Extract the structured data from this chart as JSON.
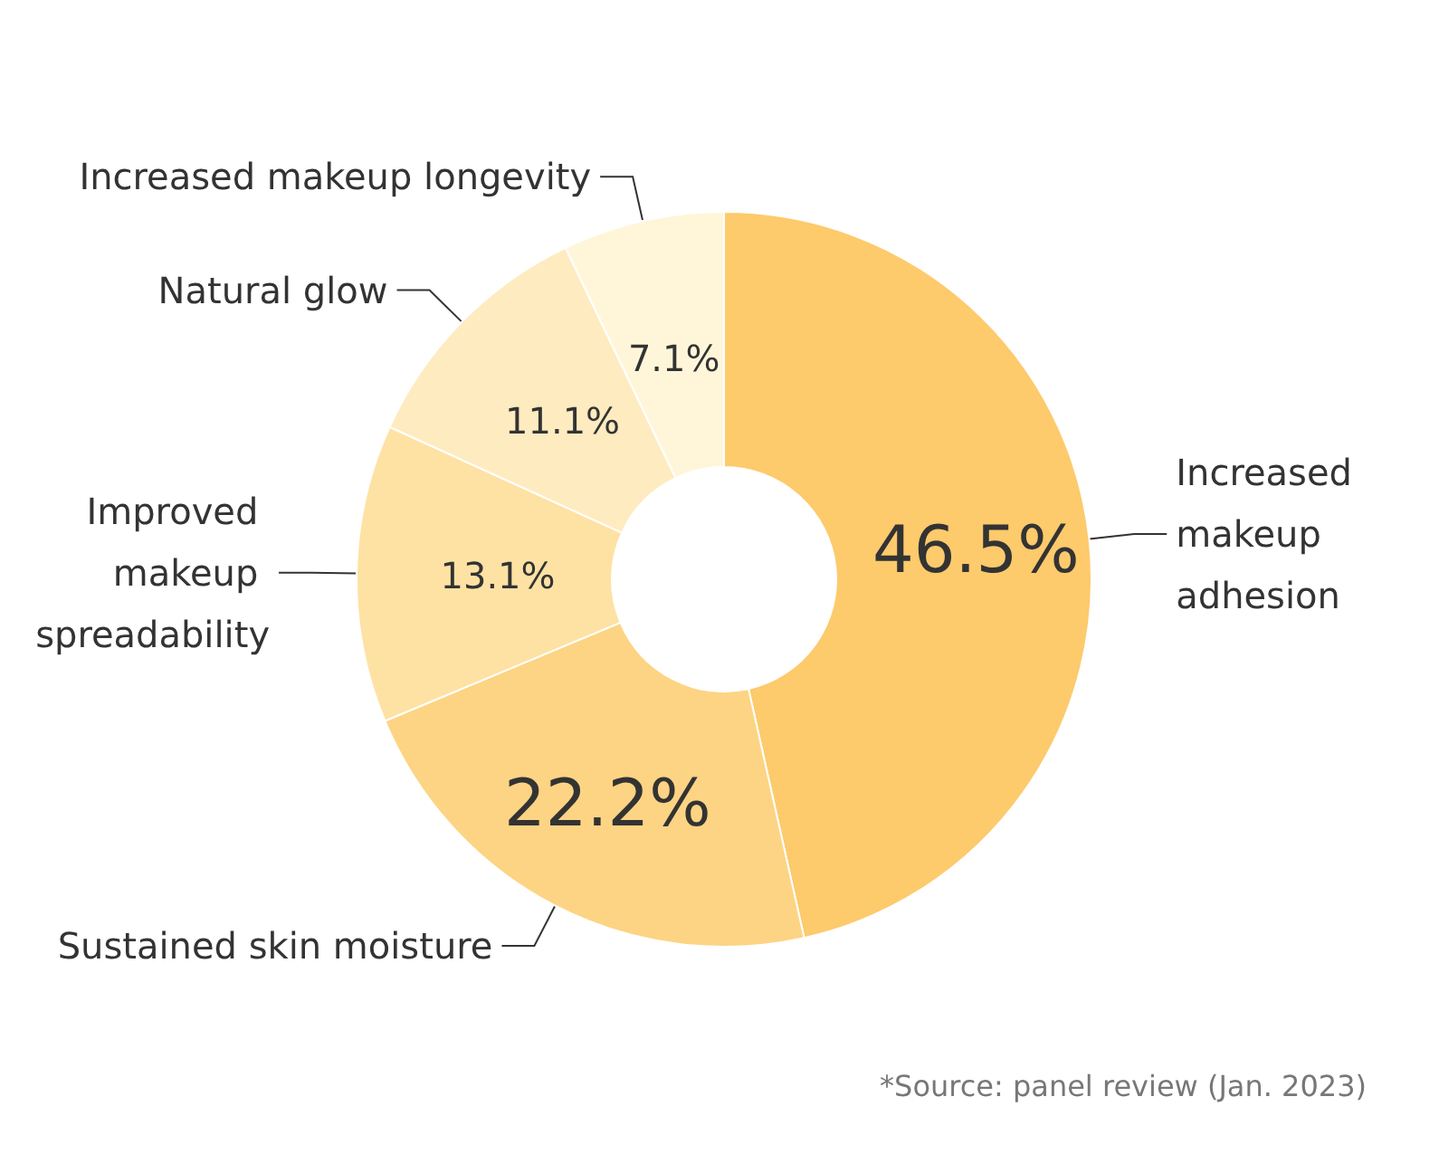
{
  "chart_data": {
    "type": "donut",
    "categories": [
      "Increased makeup adhesion",
      "Sustained skin moisture",
      "Improved makeup spreadability",
      "Natural glow",
      "Increased makeup longevity"
    ],
    "values": [
      46.5,
      22.2,
      13.1,
      11.1,
      7.1
    ],
    "value_labels": [
      "46.5%",
      "22.2%",
      "13.1%",
      "11.1%",
      "7.1%"
    ],
    "colors": [
      "#fdca6c",
      "#fdd483",
      "#fee2a4",
      "#feebbf",
      "#fff6da"
    ],
    "legend": false,
    "annotations": [
      "*Source: panel review (Jan. 2023)"
    ]
  }
}
